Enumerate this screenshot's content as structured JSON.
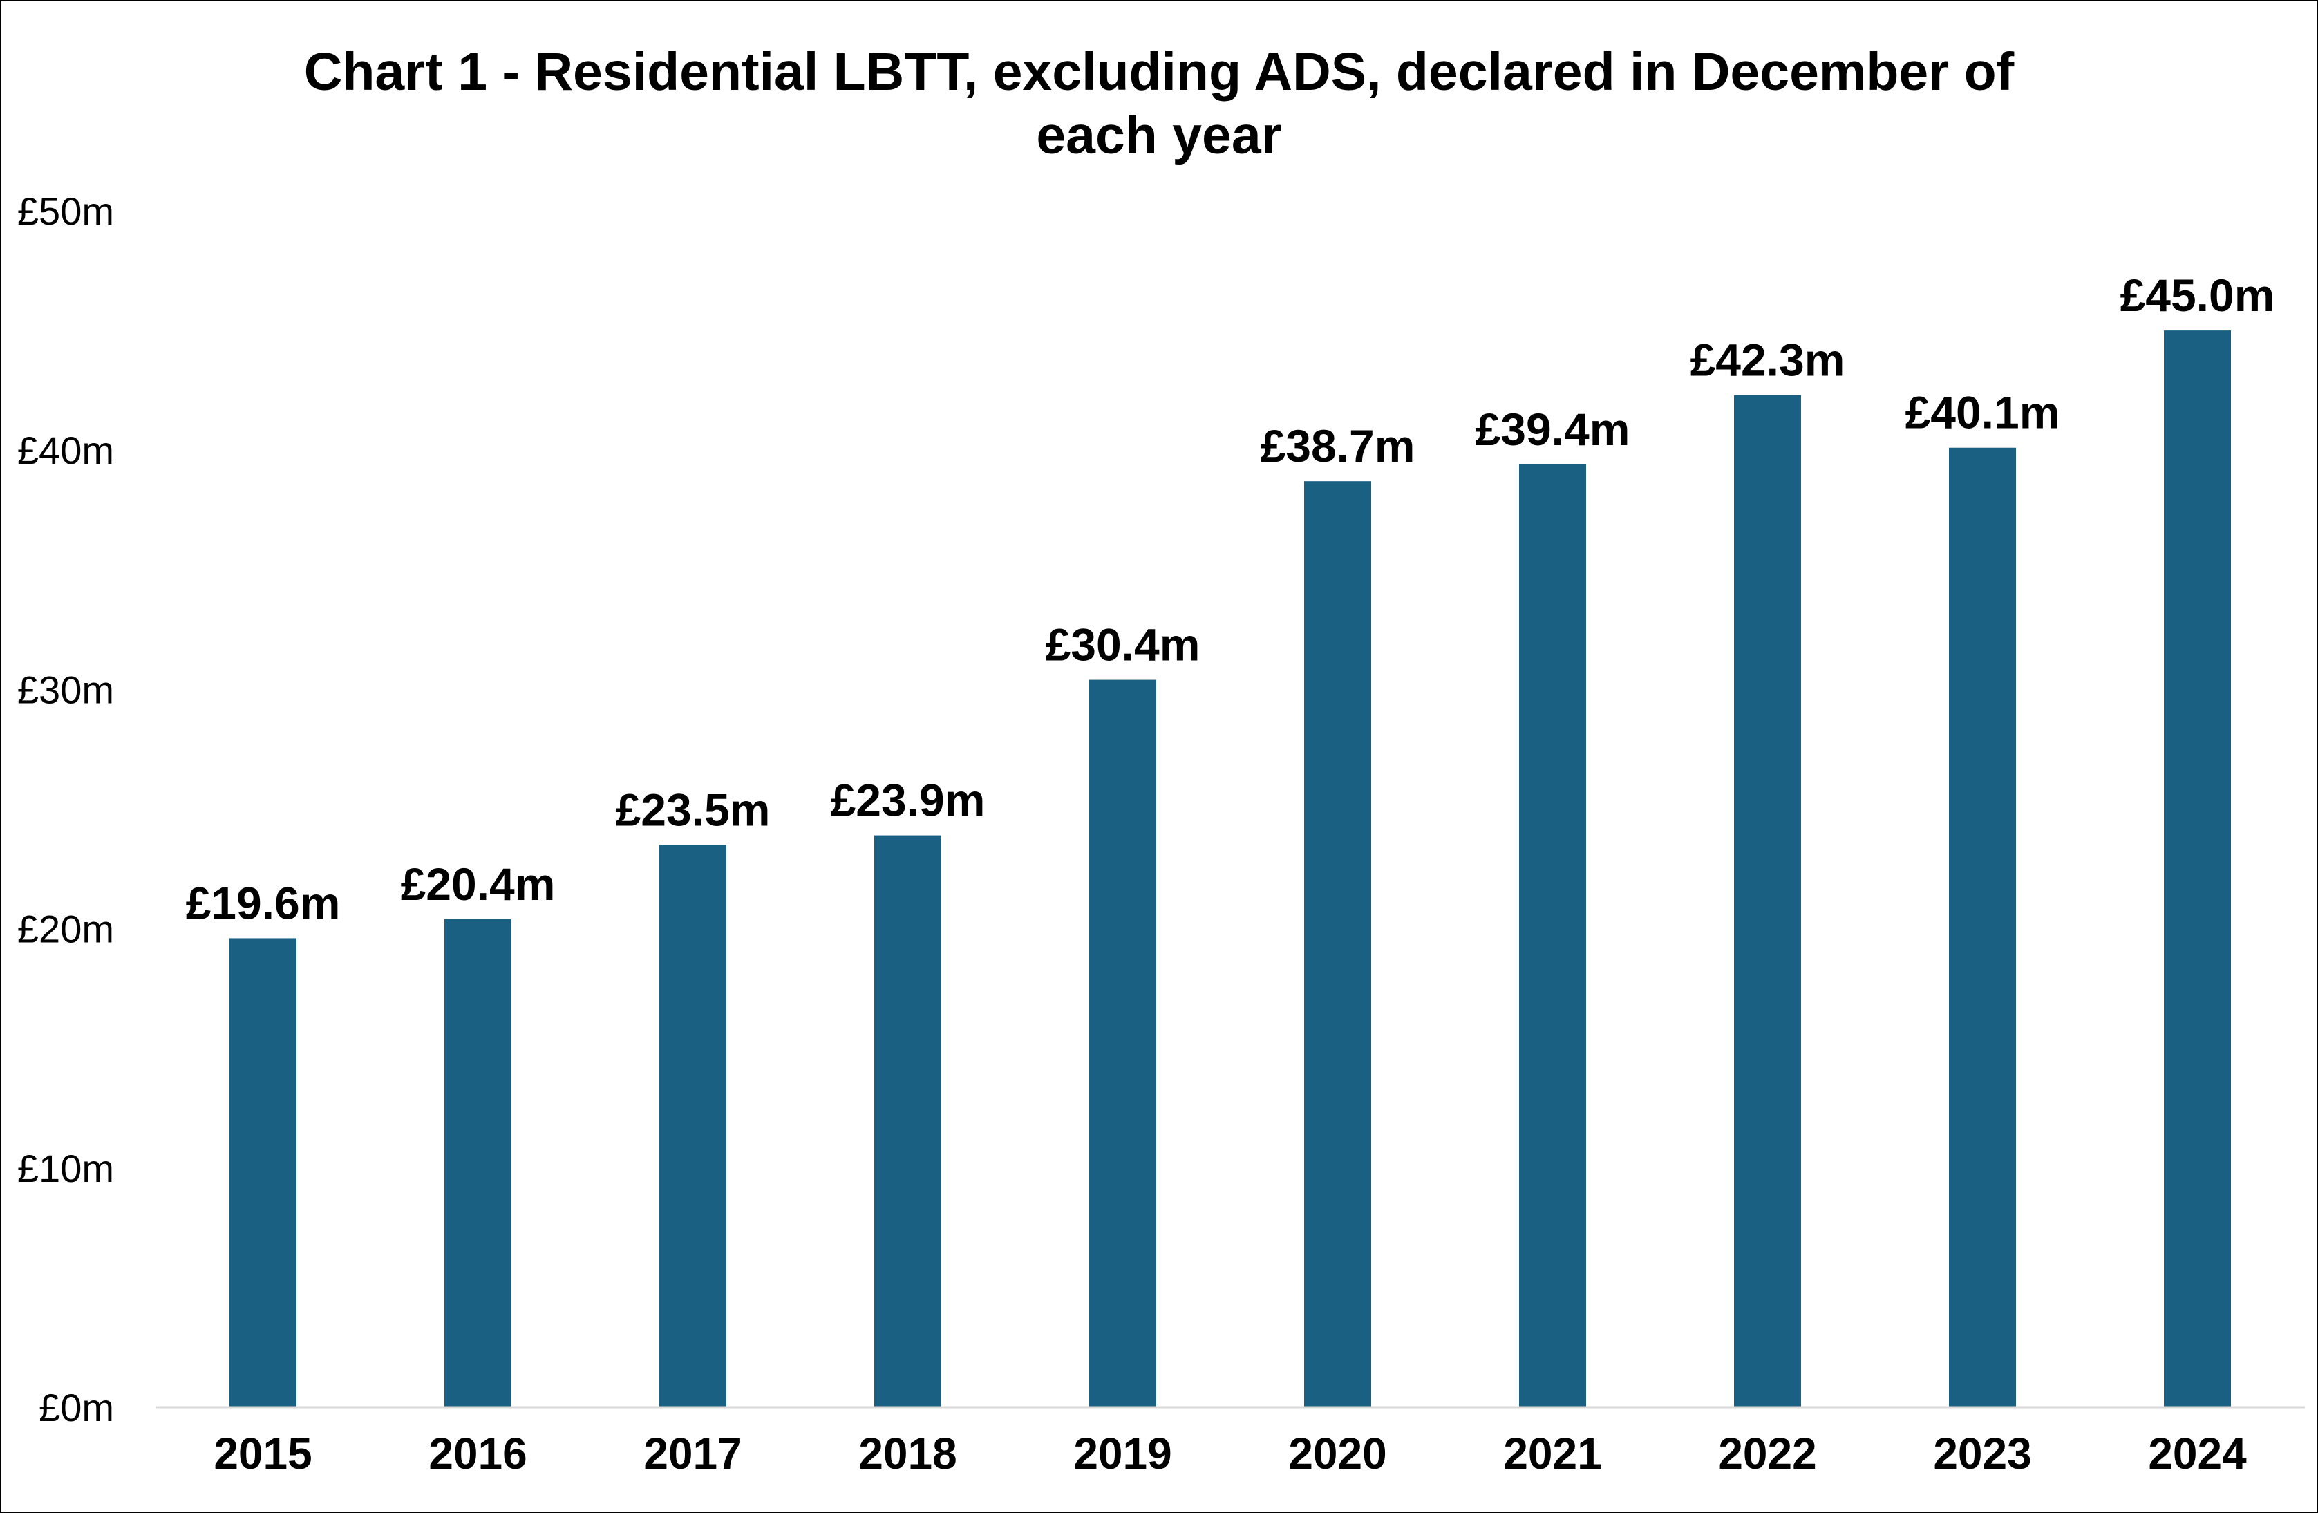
{
  "chart_data": {
    "type": "bar",
    "title_lines": [
      "Chart 1 - Residential LBTT, excluding ADS, declared in December of",
      "each year"
    ],
    "categories": [
      "2015",
      "2016",
      "2017",
      "2018",
      "2019",
      "2020",
      "2021",
      "2022",
      "2023",
      "2024"
    ],
    "values": [
      19.6,
      20.4,
      23.5,
      23.9,
      30.4,
      38.7,
      39.4,
      42.3,
      40.1,
      45.0
    ],
    "data_labels": [
      "£19.6m",
      "£20.4m",
      "£23.5m",
      "£23.9m",
      "£30.4m",
      "£38.7m",
      "£39.4m",
      "£42.3m",
      "£40.1m",
      "£45.0m"
    ],
    "y_ticks": [
      0,
      10,
      20,
      30,
      40,
      50
    ],
    "y_tick_labels": [
      "£0m",
      "£10m",
      "£20m",
      "£30m",
      "£40m",
      "£50m"
    ],
    "ylim": [
      0,
      50
    ],
    "xlabel": "",
    "ylabel": "",
    "grid": false,
    "legend": "none",
    "bar_color": "#1a6082"
  }
}
